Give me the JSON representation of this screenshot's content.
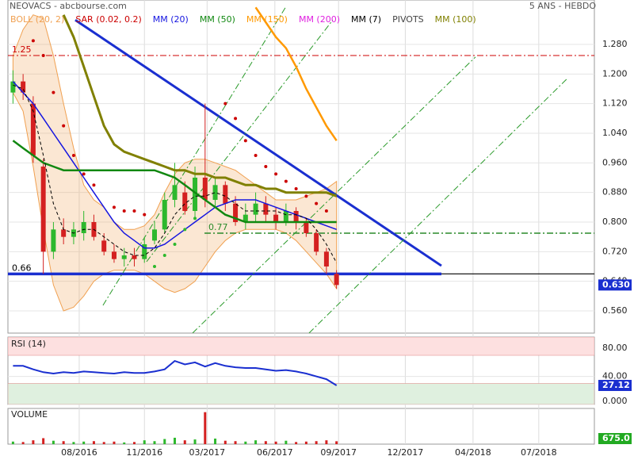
{
  "chart_data": [
    {
      "type": "candlestick",
      "title": "NEOVACS - abcbourse.com",
      "subtitle": "5 ANS - HEBDO",
      "x": [
        0.5,
        1.5,
        2.5,
        3.5,
        4.5,
        5.5,
        6.5,
        7.5,
        8.5,
        9.5,
        10.5,
        11.5,
        12.5,
        13.5,
        14.5,
        15.5,
        16.5,
        17.5,
        18.5,
        19.5,
        20.5,
        21.5,
        22.5,
        23.5,
        24.5,
        25.5,
        26.5,
        27.5,
        28.5,
        29.5,
        30.5,
        31.5,
        32.5
      ],
      "xlim": [
        0,
        58
      ],
      "xticks": [
        {
          "value": 7.05,
          "label": "08/2016"
        },
        {
          "value": 13.5,
          "label": "11/2016"
        },
        {
          "value": 19.7,
          "label": "03/2017"
        },
        {
          "value": 26.4,
          "label": "06/2017"
        },
        {
          "value": 32.7,
          "label": "09/2017"
        },
        {
          "value": 39.3,
          "label": "12/2017"
        },
        {
          "value": 46,
          "label": "04/2018"
        },
        {
          "value": 52.5,
          "label": "07/2018"
        }
      ],
      "ylim": [
        0.5,
        1.4
      ],
      "yticks": [
        {
          "value": 0.56,
          "label": "0.560"
        },
        {
          "value": 0.64,
          "label": "0.640"
        },
        {
          "value": 0.72,
          "label": "0.720"
        },
        {
          "value": 0.8,
          "label": "0.800"
        },
        {
          "value": 0.88,
          "label": "0.880"
        },
        {
          "value": 0.96,
          "label": "0.960"
        },
        {
          "value": 1.04,
          "label": "1.040"
        },
        {
          "value": 1.12,
          "label": "1.120"
        },
        {
          "value": 1.2,
          "label": "1.200"
        },
        {
          "value": 1.28,
          "label": "1.280"
        }
      ],
      "open": [
        1.15,
        1.18,
        1.12,
        0.95,
        0.72,
        0.78,
        0.76,
        0.77,
        0.8,
        0.75,
        0.72,
        0.7,
        0.71,
        0.7,
        0.75,
        0.78,
        0.86,
        0.88,
        0.83,
        0.92,
        0.86,
        0.9,
        0.85,
        0.8,
        0.82,
        0.85,
        0.82,
        0.8,
        0.83,
        0.8,
        0.77,
        0.72,
        0.66
      ],
      "high": [
        1.21,
        1.2,
        1.14,
        0.97,
        0.8,
        0.81,
        0.8,
        0.83,
        0.82,
        0.77,
        0.74,
        0.73,
        0.73,
        0.76,
        0.8,
        0.88,
        0.96,
        0.91,
        0.95,
        1.12,
        0.92,
        0.91,
        0.87,
        0.85,
        0.88,
        0.87,
        0.84,
        0.85,
        0.84,
        0.81,
        0.78,
        0.73,
        0.67
      ],
      "low": [
        1.12,
        1.13,
        0.96,
        0.66,
        0.7,
        0.74,
        0.74,
        0.75,
        0.75,
        0.71,
        0.69,
        0.68,
        0.68,
        0.69,
        0.74,
        0.77,
        0.84,
        0.82,
        0.81,
        0.84,
        0.84,
        0.83,
        0.79,
        0.78,
        0.8,
        0.8,
        0.78,
        0.79,
        0.78,
        0.76,
        0.71,
        0.66,
        0.62
      ],
      "close": [
        1.18,
        1.15,
        0.98,
        0.72,
        0.78,
        0.76,
        0.78,
        0.8,
        0.76,
        0.72,
        0.7,
        0.71,
        0.7,
        0.74,
        0.78,
        0.86,
        0.9,
        0.83,
        0.92,
        0.86,
        0.9,
        0.85,
        0.8,
        0.82,
        0.85,
        0.82,
        0.8,
        0.83,
        0.8,
        0.77,
        0.72,
        0.68,
        0.63
      ],
      "up_color": "#2db82d",
      "down_color": "#d42020",
      "series": [
        {
          "name": "BOLL (20, 2)",
          "color": "#f0a050",
          "style": "band",
          "upper": [
            1.25,
            1.32,
            1.36,
            1.35,
            1.25,
            1.12,
            1.0,
            0.9,
            0.86,
            0.84,
            0.8,
            0.78,
            0.78,
            0.79,
            0.82,
            0.88,
            0.93,
            0.96,
            0.97,
            0.97,
            0.96,
            0.95,
            0.94,
            0.92,
            0.9,
            0.88,
            0.86,
            0.86,
            0.86,
            0.87,
            0.88,
            0.89,
            0.91
          ],
          "lower": [
            1.15,
            1.1,
            0.95,
            0.78,
            0.63,
            0.56,
            0.57,
            0.6,
            0.64,
            0.66,
            0.67,
            0.67,
            0.67,
            0.66,
            0.64,
            0.62,
            0.61,
            0.62,
            0.64,
            0.68,
            0.72,
            0.75,
            0.77,
            0.78,
            0.78,
            0.78,
            0.78,
            0.77,
            0.75,
            0.72,
            0.69,
            0.66,
            0.62
          ]
        },
        {
          "name": "SAR (0.02, 0.2)",
          "color": "#cc0000",
          "style": "dots",
          "values": [
            null,
            null,
            1.29,
            1.25,
            1.15,
            1.06,
            0.98,
            0.93,
            0.9,
            null,
            0.84,
            0.83,
            0.83,
            0.82,
            null,
            null,
            null,
            null,
            null,
            null,
            null,
            1.12,
            1.08,
            1.02,
            0.98,
            0.95,
            0.93,
            0.91,
            0.89,
            0.87,
            0.85,
            0.83,
            null
          ]
        },
        {
          "name": "MM (20)",
          "color": "#1515e0",
          "style": "line",
          "width": 1.5,
          "values": [
            1.18,
            1.15,
            1.12,
            1.08,
            1.04,
            1.0,
            0.96,
            0.92,
            0.88,
            0.84,
            0.8,
            0.77,
            0.75,
            0.73,
            0.73,
            0.74,
            0.76,
            0.78,
            0.8,
            0.82,
            0.84,
            0.85,
            0.86,
            0.86,
            0.86,
            0.85,
            0.84,
            0.83,
            0.82,
            0.81,
            0.8,
            0.79,
            0.78
          ]
        },
        {
          "name": "MM (50)",
          "color": "#118811",
          "style": "line",
          "width": 2.5,
          "values": [
            1.02,
            1.0,
            0.98,
            0.96,
            0.95,
            0.94,
            0.94,
            0.94,
            0.94,
            0.94,
            0.94,
            0.94,
            0.94,
            0.94,
            0.94,
            0.93,
            0.92,
            0.9,
            0.88,
            0.86,
            0.84,
            0.82,
            0.81,
            0.8,
            0.8,
            0.8,
            0.8,
            0.8,
            0.8,
            0.8,
            0.8,
            0.8,
            0.8
          ]
        },
        {
          "name": "MM (150)",
          "color": "#ff9900",
          "style": "line",
          "width": 2.5,
          "values": [
            null,
            null,
            null,
            null,
            null,
            null,
            null,
            null,
            null,
            null,
            null,
            null,
            null,
            null,
            null,
            null,
            null,
            null,
            null,
            null,
            null,
            null,
            null,
            null,
            1.38,
            1.34,
            1.3,
            1.27,
            1.22,
            1.16,
            1.11,
            1.06,
            1.02
          ]
        },
        {
          "name": "MM (200)",
          "color": "#e020e0",
          "style": "line",
          "width": 1.5,
          "values": [
            null,
            null,
            null,
            null,
            null,
            null,
            null,
            null,
            null,
            null,
            null,
            null,
            null,
            null,
            null,
            null,
            null,
            null,
            null,
            null,
            null,
            null,
            null,
            null,
            null,
            null,
            null,
            null,
            null,
            null,
            null,
            null,
            null
          ]
        },
        {
          "name": "MM (7)",
          "color": "#000000",
          "style": "dashed",
          "width": 1,
          "values": [
            1.17,
            1.16,
            1.1,
            0.98,
            0.85,
            0.78,
            0.77,
            0.78,
            0.78,
            0.76,
            0.74,
            0.72,
            0.71,
            0.71,
            0.73,
            0.77,
            0.82,
            0.85,
            0.87,
            0.87,
            0.88,
            0.87,
            0.85,
            0.83,
            0.83,
            0.83,
            0.83,
            0.82,
            0.82,
            0.81,
            0.78,
            0.74,
            0.69
          ]
        },
        {
          "name": "PIVOTS",
          "color": "#444444",
          "style": "line",
          "width": 1,
          "values": [
            null,
            null,
            null,
            null,
            null,
            null,
            null,
            null,
            null,
            null,
            null,
            null,
            null,
            null,
            null,
            null,
            null,
            null,
            null,
            null,
            null,
            null,
            null,
            null,
            null,
            null,
            null,
            null,
            null,
            null,
            null,
            null,
            null
          ]
        },
        {
          "name": "MM (100)",
          "color": "#808000",
          "style": "line",
          "width": 3,
          "values": [
            null,
            null,
            null,
            null,
            null,
            1.36,
            1.3,
            1.22,
            1.14,
            1.06,
            1.01,
            0.99,
            0.98,
            0.97,
            0.96,
            0.95,
            0.94,
            0.94,
            0.93,
            0.93,
            0.92,
            0.92,
            0.91,
            0.9,
            0.9,
            0.89,
            0.89,
            0.88,
            0.88,
            0.88,
            0.88,
            0.88,
            0.87
          ]
        },
        {
          "color": "#2db82d",
          "style": "dots",
          "values": [
            null,
            null,
            null,
            null,
            null,
            null,
            null,
            null,
            null,
            null,
            null,
            null,
            null,
            null,
            0.68,
            0.71,
            0.74,
            0.78,
            0.81,
            null,
            null,
            null,
            null,
            null,
            null,
            null,
            null,
            null,
            null,
            null,
            null,
            null,
            null
          ]
        }
      ],
      "hlines": [
        {
          "value": 1.25,
          "span": [
            0,
            58
          ],
          "color": "#cc0000",
          "width": 1,
          "dash": "dashdot",
          "labeled": true
        },
        {
          "value": 0.66,
          "span": [
            0,
            58
          ],
          "color": "#000000",
          "width": 1.2,
          "dash": "solid",
          "labeled": false
        },
        {
          "value": 0.66,
          "span": [
            0,
            42.87
          ],
          "color": "#1a2fd0",
          "width": 3.5,
          "dash": "solid",
          "labeled": true
        },
        {
          "value": 0.77,
          "span": [
            19.44,
            58
          ],
          "color": "#2a8a2a",
          "width": 1.5,
          "dash": "dashdot",
          "labeled": true
        }
      ],
      "trendlines": [
        {
          "points": [
            [
              6.66,
              1.346
            ],
            [
              42.87,
              0.682
            ]
          ],
          "color": "#1a2fd0",
          "width": 3,
          "dash": "solid"
        },
        {
          "points": [
            [
              9.4,
              0.575
            ],
            [
              27.43,
              1.379
            ]
          ],
          "color": "#2a9a2a",
          "width": 1,
          "dash": "dashdot"
        },
        {
          "points": [
            [
              13.71,
              0.693
            ],
            [
              32.13,
              1.346
            ]
          ],
          "color": "#2a9a2a",
          "width": 1,
          "dash": "dashdot"
        },
        {
          "points": [
            [
              18.26,
              0.5
            ],
            [
              46.24,
              1.246
            ]
          ],
          "color": "#2a9a2a",
          "width": 1,
          "dash": "dashdot"
        },
        {
          "points": [
            [
              29.78,
              0.5
            ],
            [
              55.25,
              1.186
            ]
          ],
          "color": "#2a9a2a",
          "width": 1,
          "dash": "dashdot"
        }
      ],
      "price_tag": {
        "value": 0.63,
        "label": "0.630",
        "color": "#1a2fd0"
      }
    },
    {
      "type": "line",
      "title": "RSI (14)",
      "x": [
        0.5,
        1.5,
        2.5,
        3.5,
        4.5,
        5.5,
        6.5,
        7.5,
        8.5,
        9.5,
        10.5,
        11.5,
        12.5,
        13.5,
        14.5,
        15.5,
        16.5,
        17.5,
        18.5,
        19.5,
        20.5,
        21.5,
        22.5,
        23.5,
        24.5,
        25.5,
        26.5,
        27.5,
        28.5,
        29.5,
        30.5,
        31.5,
        32.5
      ],
      "ylim": [
        0,
        96
      ],
      "yticks": [
        {
          "value": 80,
          "label": "80.00"
        },
        {
          "value": 40,
          "label": "40.00"
        },
        {
          "value": 0,
          "label": "0.000"
        }
      ],
      "zones": [
        {
          "from": 70,
          "to": 96,
          "color": "#fde0e0"
        },
        {
          "from": 0,
          "to": 30,
          "color": "#dff0df"
        }
      ],
      "series": [
        {
          "color": "#1a2fd0",
          "values": [
            55,
            55,
            50,
            46,
            44,
            46,
            45,
            47,
            46,
            45,
            44,
            46,
            45,
            45,
            47,
            50,
            62,
            57,
            60,
            54,
            59,
            55,
            53,
            52,
            52,
            50,
            48,
            49,
            47,
            44,
            40,
            36,
            27.12
          ]
        }
      ]
    },
    {
      "type": "bar",
      "title": "VOLUME",
      "x": [
        0.5,
        1.5,
        2.5,
        3.5,
        4.5,
        5.5,
        6.5,
        7.5,
        8.5,
        9.5,
        10.5,
        11.5,
        12.5,
        13.5,
        14.5,
        15.5,
        16.5,
        17.5,
        18.5,
        19.5,
        20.5,
        21.5,
        22.5,
        23.5,
        24.5,
        25.5,
        26.5,
        27.5,
        28.5,
        29.5,
        30.5,
        31.5,
        32.5
      ],
      "ylim": [
        0,
        8000
      ],
      "values": [
        600,
        500,
        900,
        1400,
        800,
        700,
        500,
        600,
        700,
        500,
        600,
        400,
        500,
        900,
        700,
        1200,
        1500,
        900,
        1100,
        7500,
        1300,
        800,
        700,
        600,
        900,
        700,
        600,
        800,
        500,
        600,
        700,
        900,
        675
      ],
      "value_labels": [
        null,
        null,
        null,
        null,
        null,
        null,
        null,
        null,
        null,
        null,
        null,
        null,
        null,
        null,
        null,
        null,
        null,
        null,
        null,
        null,
        null,
        null,
        null,
        null,
        null,
        null,
        null,
        null,
        null,
        null,
        null,
        null,
        "675.0"
      ],
      "tag_color": "#22aa22"
    }
  ]
}
